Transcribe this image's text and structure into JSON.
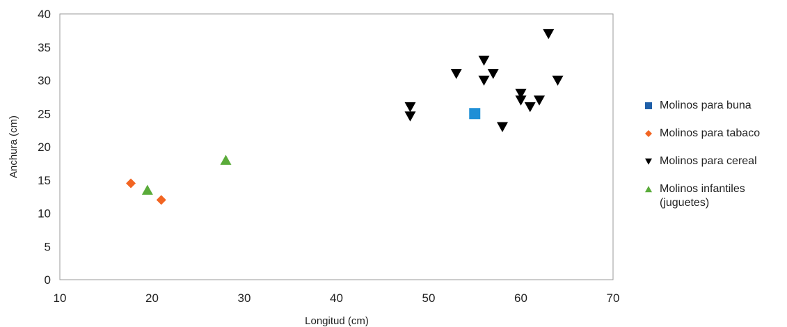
{
  "chart_data": {
    "type": "scatter",
    "xlabel": "Longitud (cm)",
    "ylabel": "Anchura (cm)",
    "xlim": [
      10,
      70
    ],
    "ylim": [
      0,
      40
    ],
    "xticks": [
      10,
      20,
      30,
      40,
      50,
      60,
      70
    ],
    "yticks": [
      0,
      5,
      10,
      15,
      20,
      25,
      30,
      35,
      40
    ],
    "grid": false,
    "legend_position": "right",
    "series": [
      {
        "name": "Molinos para buna",
        "marker": "square",
        "color": "#1f8fd6",
        "legend_color": "#1f5fa8",
        "points": [
          [
            55,
            25
          ]
        ]
      },
      {
        "name": "Molinos para tabaco",
        "marker": "diamond",
        "color": "#f26522",
        "points": [
          [
            17.7,
            14.5
          ],
          [
            21,
            12
          ]
        ]
      },
      {
        "name": "Molinos para cereal",
        "marker": "triangle-down",
        "color": "#000000",
        "points": [
          [
            48,
            26
          ],
          [
            48,
            24.6
          ],
          [
            53,
            31
          ],
          [
            56,
            33
          ],
          [
            56,
            30
          ],
          [
            57,
            31
          ],
          [
            58,
            23
          ],
          [
            60,
            28
          ],
          [
            60,
            27
          ],
          [
            61,
            26
          ],
          [
            62,
            27
          ],
          [
            63,
            37
          ],
          [
            64,
            30
          ]
        ]
      },
      {
        "name": "Molinos infantiles (juguetes)",
        "marker": "triangle-up",
        "color": "#5aab3a",
        "points": [
          [
            19.5,
            13.5
          ],
          [
            28,
            18
          ]
        ]
      }
    ]
  }
}
